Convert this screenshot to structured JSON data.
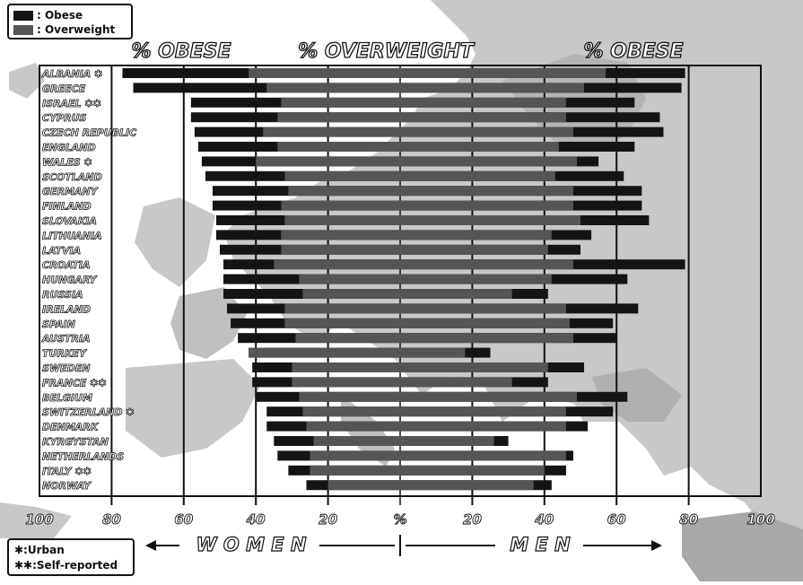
{
  "legend": {
    "obese_label": ": Obese",
    "overweight_label": ": Overweight"
  },
  "notes": {
    "urban": "✱:Urban",
    "self_reported": "✱✱:Self-reported"
  },
  "colors": {
    "obese": "#141414",
    "overweight": "#555555",
    "map_land": "#c8c8c8",
    "map_land_dark": "#a8a8a8",
    "background": "#ffffff"
  },
  "chart_data": {
    "type": "bar",
    "subtype": "population pyramid (diverging horizontal bars)",
    "header_left": "% OBESE",
    "header_center": "% OVERWEIGHT",
    "header_right": "% OBESE",
    "x_center_label": "%",
    "women_label": "W O M E N",
    "men_label": "M E N",
    "xticks": [
      "100",
      "80",
      "60",
      "40",
      "20",
      "%",
      "20",
      "40",
      "60",
      "80",
      "100"
    ],
    "xlim": [
      -100,
      100
    ],
    "grid": true,
    "series": [
      {
        "name": "Obese"
      },
      {
        "name": "Overweight"
      }
    ],
    "countries": [
      {
        "name": "ALBANIA ✱",
        "women_total": 77,
        "women_overweight": 42,
        "men_overweight": 57,
        "men_total": 79
      },
      {
        "name": "GREECE",
        "women_total": 74,
        "women_overweight": 37,
        "men_overweight": 51,
        "men_total": 78
      },
      {
        "name": "ISRAEL ✱✱",
        "women_total": 58,
        "women_overweight": 33,
        "men_overweight": 46,
        "men_total": 65
      },
      {
        "name": "CYPRUS",
        "women_total": 58,
        "women_overweight": 34,
        "men_overweight": 46,
        "men_total": 72
      },
      {
        "name": "CZECH REPUBLIC",
        "women_total": 57,
        "women_overweight": 38,
        "men_overweight": 48,
        "men_total": 73
      },
      {
        "name": "ENGLAND",
        "women_total": 56,
        "women_overweight": 34,
        "men_overweight": 44,
        "men_total": 65
      },
      {
        "name": "WALES ✱",
        "women_total": 55,
        "women_overweight": 40,
        "men_overweight": 49,
        "men_total": 55
      },
      {
        "name": "SCOTLAND",
        "women_total": 54,
        "women_overweight": 32,
        "men_overweight": 43,
        "men_total": 62
      },
      {
        "name": "GERMANY",
        "women_total": 52,
        "women_overweight": 31,
        "men_overweight": 48,
        "men_total": 67
      },
      {
        "name": "FINLAND",
        "women_total": 52,
        "women_overweight": 33,
        "men_overweight": 48,
        "men_total": 67
      },
      {
        "name": "SLOVAKIA",
        "women_total": 51,
        "women_overweight": 32,
        "men_overweight": 50,
        "men_total": 69
      },
      {
        "name": "LITHUANIA",
        "women_total": 51,
        "women_overweight": 33,
        "men_overweight": 42,
        "men_total": 53
      },
      {
        "name": "LATVIA",
        "women_total": 50,
        "women_overweight": 33,
        "men_overweight": 41,
        "men_total": 50
      },
      {
        "name": "CROATIA",
        "women_total": 49,
        "women_overweight": 35,
        "men_overweight": 48,
        "men_total": 79
      },
      {
        "name": "HUNGARY",
        "women_total": 49,
        "women_overweight": 28,
        "men_overweight": 42,
        "men_total": 63
      },
      {
        "name": "RUSSIA",
        "women_total": 49,
        "women_overweight": 27,
        "men_overweight": 31,
        "men_total": 41
      },
      {
        "name": "IRELAND",
        "women_total": 48,
        "women_overweight": 32,
        "men_overweight": 46,
        "men_total": 66
      },
      {
        "name": "SPAIN",
        "women_total": 47,
        "women_overweight": 32,
        "men_overweight": 47,
        "men_total": 59
      },
      {
        "name": "AUSTRIA",
        "women_total": 45,
        "women_overweight": 29,
        "men_overweight": 48,
        "men_total": 60
      },
      {
        "name": "TURKEY",
        "women_total": 42,
        "women_overweight": 42,
        "men_overweight": 18,
        "men_total": 25
      },
      {
        "name": "SWEDEN",
        "women_total": 41,
        "women_overweight": 30,
        "men_overweight": 41,
        "men_total": 51
      },
      {
        "name": "FRANCE ✱✱",
        "women_total": 41,
        "women_overweight": 30,
        "men_overweight": 31,
        "men_total": 41
      },
      {
        "name": "BELGIUM",
        "women_total": 40,
        "women_overweight": 28,
        "men_overweight": 49,
        "men_total": 63
      },
      {
        "name": "SWITZERLAND ✱",
        "women_total": 37,
        "women_overweight": 27,
        "men_overweight": 46,
        "men_total": 59
      },
      {
        "name": "DENMARK",
        "women_total": 37,
        "women_overweight": 26,
        "men_overweight": 46,
        "men_total": 52
      },
      {
        "name": "KYRGYSTAN",
        "women_total": 35,
        "women_overweight": 24,
        "men_overweight": 26,
        "men_total": 30
      },
      {
        "name": "NETHERLANDS",
        "women_total": 34,
        "women_overweight": 25,
        "men_overweight": 46,
        "men_total": 48
      },
      {
        "name": "ITALY ✱✱",
        "women_total": 31,
        "women_overweight": 25,
        "men_overweight": 40,
        "men_total": 46
      },
      {
        "name": "NORWAY",
        "women_total": 26,
        "women_overweight": 20,
        "men_overweight": 37,
        "men_total": 42
      }
    ]
  }
}
